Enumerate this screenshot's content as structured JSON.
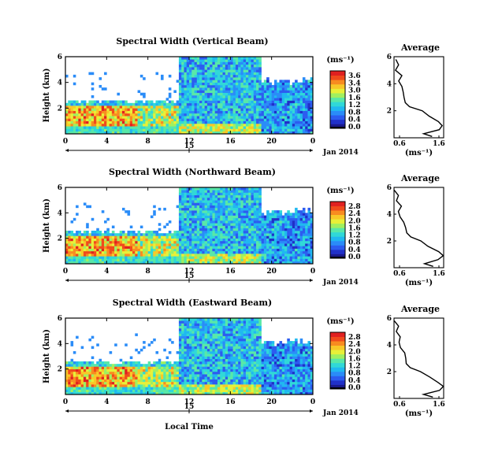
{
  "chart_data": [
    {
      "type": "heatmap",
      "title": "Spectral Width (Vertical Beam)",
      "ylabel": "Height (km)",
      "xticks": [
        "0",
        "4",
        "8",
        "12",
        "16",
        "20",
        "0"
      ],
      "yticks": [
        "6",
        "4",
        "2"
      ],
      "xlim": [
        0,
        24
      ],
      "ylim": [
        0,
        6
      ],
      "date_center": "15",
      "date_label": "Jan 2014",
      "colorbar": {
        "label": "(ms⁻¹)",
        "ticks": [
          "3.6",
          "3.4",
          "3.0",
          "1.6",
          "1.2",
          "0.8",
          "0.4",
          "0.0"
        ]
      },
      "average": {
        "title": "Average",
        "xlabel": "(ms⁻¹)",
        "xticks": [
          "0.6",
          "1.6"
        ],
        "yticks": [
          "6",
          "4",
          "2"
        ]
      }
    },
    {
      "type": "heatmap",
      "title": "Spectral Width (Northward Beam)",
      "ylabel": "Height (km)",
      "xticks": [
        "0",
        "4",
        "8",
        "12",
        "16",
        "20",
        "0"
      ],
      "yticks": [
        "6",
        "4",
        "2"
      ],
      "xlim": [
        0,
        24
      ],
      "ylim": [
        0,
        6
      ],
      "date_center": "15",
      "date_label": "Jan 2014",
      "colorbar": {
        "label": "(ms⁻¹)",
        "ticks": [
          "2.8",
          "2.4",
          "2.0",
          "1.6",
          "1.2",
          "0.8",
          "0.4",
          "0.0"
        ]
      },
      "average": {
        "title": "Average",
        "xlabel": "(ms⁻¹)",
        "xticks": [
          "0.6",
          "1.6"
        ],
        "yticks": [
          "6",
          "4",
          "2"
        ]
      }
    },
    {
      "type": "heatmap",
      "title": "Spectral Width (Eastward Beam)",
      "ylabel": "Height (km)",
      "xticks": [
        "0",
        "4",
        "8",
        "12",
        "16",
        "20",
        "0"
      ],
      "yticks": [
        "6",
        "4",
        "2"
      ],
      "xlim": [
        0,
        24
      ],
      "ylim": [
        0,
        6
      ],
      "date_center": "15",
      "date_label": "Jan 2014",
      "xlabel": "Local Time",
      "colorbar": {
        "label": "(ms⁻¹)",
        "ticks": [
          "2.8",
          "2.4",
          "2.0",
          "1.6",
          "1.2",
          "0.8",
          "0.4",
          "0.0"
        ]
      },
      "average": {
        "title": "Average",
        "xlabel": "(ms⁻¹)",
        "xticks": [
          "0.6",
          "1.6"
        ],
        "yticks": [
          "6",
          "4",
          "2"
        ]
      }
    }
  ]
}
